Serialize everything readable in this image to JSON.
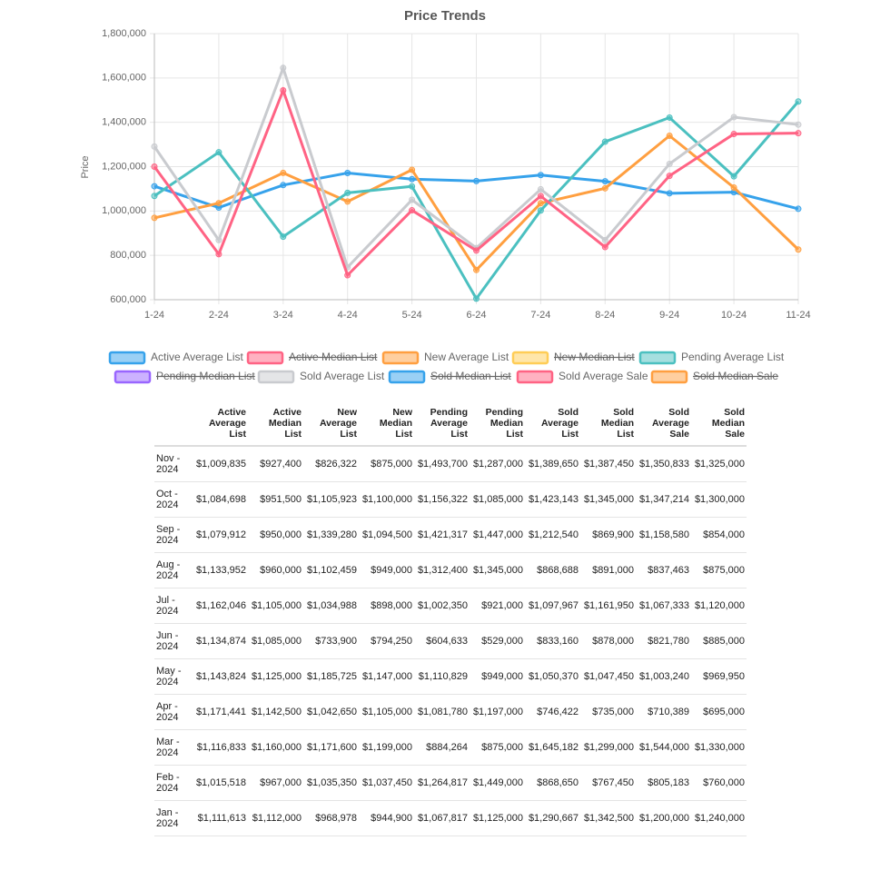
{
  "chart_data": {
    "type": "line",
    "title": "Price Trends",
    "y_label": "Price",
    "categories": [
      "1-24",
      "2-24",
      "3-24",
      "4-24",
      "5-24",
      "6-24",
      "7-24",
      "8-24",
      "9-24",
      "10-24",
      "11-24"
    ],
    "ylim": [
      600000,
      1800000
    ],
    "yticks": [
      {
        "value": 600000,
        "label": "600,000"
      },
      {
        "value": 800000,
        "label": "800,000"
      },
      {
        "value": 1000000,
        "label": "1,000,000"
      },
      {
        "value": 1200000,
        "label": "1,200,000"
      },
      {
        "value": 1400000,
        "label": "1,400,000"
      },
      {
        "value": 1600000,
        "label": "1,600,000"
      },
      {
        "value": 1800000,
        "label": "1,800,000"
      }
    ],
    "grid": true,
    "legend": "bottom",
    "series": [
      {
        "name": "Active Average List",
        "color": "#36a2eb",
        "values": [
          1111613,
          1015518,
          1116833,
          1171441,
          1143824,
          1134874,
          1162046,
          1133952,
          1079912,
          1084698,
          1009835
        ]
      },
      {
        "name": "Active Median List",
        "color": "#ff6384",
        "hidden": true
      },
      {
        "name": "New Average List",
        "color": "#ff9f40",
        "values": [
          968978,
          1035350,
          1171600,
          1042650,
          1185725,
          733900,
          1034988,
          1102459,
          1339280,
          1105923,
          826322
        ]
      },
      {
        "name": "New Median List",
        "color": "#ffcd56",
        "hidden": true
      },
      {
        "name": "Pending Average List",
        "color": "#4bc0c0",
        "values": [
          1067817,
          1264817,
          884264,
          1081780,
          1110829,
          604633,
          1002350,
          1312400,
          1421317,
          1156322,
          1493700
        ]
      },
      {
        "name": "Pending Median List",
        "color": "#9966ff",
        "hidden": true
      },
      {
        "name": "Sold Average List",
        "color": "#c9cbcf",
        "values": [
          1290667,
          868650,
          1645182,
          746422,
          1050370,
          833160,
          1097967,
          868688,
          1212540,
          1423143,
          1389650
        ]
      },
      {
        "name": "Sold Median List",
        "color": "#36a2eb",
        "hidden": true
      },
      {
        "name": "Sold Average Sale",
        "color": "#ff6384",
        "values": [
          1200000,
          805183,
          1544000,
          710389,
          1003240,
          821780,
          1067333,
          837463,
          1158580,
          1347214,
          1350833
        ]
      },
      {
        "name": "Sold Median Sale",
        "color": "#ff9f40",
        "hidden": true
      }
    ]
  },
  "table": {
    "columns": [
      "Active Average List",
      "Active Median List",
      "New Average List",
      "New Median List",
      "Pending Average List",
      "Pending Median List",
      "Sold Average List",
      "Sold Median List",
      "Sold Average Sale",
      "Sold Median Sale"
    ],
    "rows": [
      [
        "Nov - 2024",
        "$1,009,835",
        "$927,400",
        "$826,322",
        "$875,000",
        "$1,493,700",
        "$1,287,000",
        "$1,389,650",
        "$1,387,450",
        "$1,350,833",
        "$1,325,000"
      ],
      [
        "Oct - 2024",
        "$1,084,698",
        "$951,500",
        "$1,105,923",
        "$1,100,000",
        "$1,156,322",
        "$1,085,000",
        "$1,423,143",
        "$1,345,000",
        "$1,347,214",
        "$1,300,000"
      ],
      [
        "Sep - 2024",
        "$1,079,912",
        "$950,000",
        "$1,339,280",
        "$1,094,500",
        "$1,421,317",
        "$1,447,000",
        "$1,212,540",
        "$869,900",
        "$1,158,580",
        "$854,000"
      ],
      [
        "Aug - 2024",
        "$1,133,952",
        "$960,000",
        "$1,102,459",
        "$949,000",
        "$1,312,400",
        "$1,345,000",
        "$868,688",
        "$891,000",
        "$837,463",
        "$875,000"
      ],
      [
        "Jul - 2024",
        "$1,162,046",
        "$1,105,000",
        "$1,034,988",
        "$898,000",
        "$1,002,350",
        "$921,000",
        "$1,097,967",
        "$1,161,950",
        "$1,067,333",
        "$1,120,000"
      ],
      [
        "Jun - 2024",
        "$1,134,874",
        "$1,085,000",
        "$733,900",
        "$794,250",
        "$604,633",
        "$529,000",
        "$833,160",
        "$878,000",
        "$821,780",
        "$885,000"
      ],
      [
        "May - 2024",
        "$1,143,824",
        "$1,125,000",
        "$1,185,725",
        "$1,147,000",
        "$1,110,829",
        "$949,000",
        "$1,050,370",
        "$1,047,450",
        "$1,003,240",
        "$969,950"
      ],
      [
        "Apr - 2024",
        "$1,171,441",
        "$1,142,500",
        "$1,042,650",
        "$1,105,000",
        "$1,081,780",
        "$1,197,000",
        "$746,422",
        "$735,000",
        "$710,389",
        "$695,000"
      ],
      [
        "Mar - 2024",
        "$1,116,833",
        "$1,160,000",
        "$1,171,600",
        "$1,199,000",
        "$884,264",
        "$875,000",
        "$1,645,182",
        "$1,299,000",
        "$1,544,000",
        "$1,330,000"
      ],
      [
        "Feb - 2024",
        "$1,015,518",
        "$967,000",
        "$1,035,350",
        "$1,037,450",
        "$1,264,817",
        "$1,449,000",
        "$868,650",
        "$767,450",
        "$805,183",
        "$760,000"
      ],
      [
        "Jan - 2024",
        "$1,111,613",
        "$1,112,000",
        "$968,978",
        "$944,900",
        "$1,067,817",
        "$1,125,000",
        "$1,290,667",
        "$1,342,500",
        "$1,200,000",
        "$1,240,000"
      ]
    ]
  }
}
